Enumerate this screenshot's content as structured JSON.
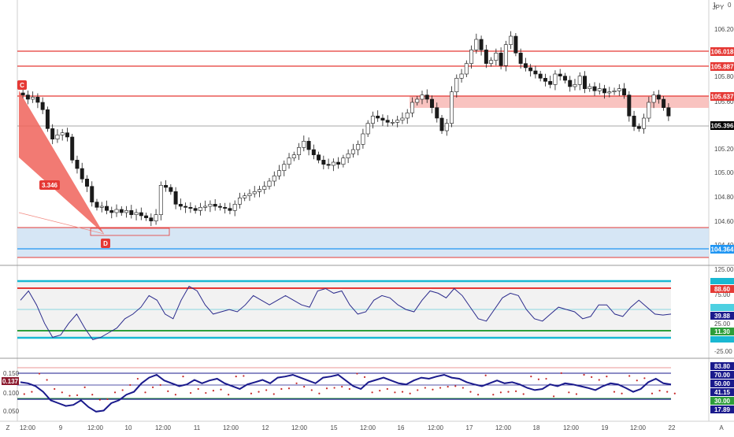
{
  "colors": {
    "candle": "#1a1a1a",
    "resistance": "#e53935",
    "zone_fill": "#f7b4b0",
    "support_fill": "#cfe2f3",
    "support_line": "#2196f3",
    "cci_line": "#2b2b8c",
    "bright_cyan": "#19b8d2",
    "green": "#2e9e3a",
    "dark_navy": "#1a1a8c",
    "dotted_red": "#c62828"
  },
  "symbol": "JPY",
  "top_right_label": "1",
  "top_right_value": "0",
  "main_chart": {
    "type": "line",
    "price_ticks": [
      "106.200",
      "105.800",
      "105.600",
      "105.200",
      "105.000",
      "104.800",
      "104.600",
      "104.400"
    ],
    "price_tags": [
      {
        "name": "resistance-1",
        "label": "106.018",
        "bg": "#e53935",
        "fg": "#ffffff"
      },
      {
        "name": "resistance-2",
        "label": "105.887",
        "bg": "#e53935",
        "fg": "#ffffff"
      },
      {
        "name": "resistance-3",
        "label": "105.637",
        "bg": "#e53935",
        "fg": "#ffffff"
      },
      {
        "name": "current-price",
        "label": "105.396",
        "bg": "#000000",
        "fg": "#ffffff"
      },
      {
        "name": "support-1",
        "label": "104.364",
        "bg": "#2196f3",
        "fg": "#ffffff"
      }
    ],
    "pattern_labels": {
      "point_c": "C",
      "point_d": "D",
      "ratio": "3.346"
    },
    "ylim": [
      104.2,
      106.3
    ],
    "close_series": [
      105.62,
      105.58,
      105.6,
      105.55,
      105.48,
      105.3,
      105.2,
      105.24,
      105.26,
      105.22,
      105.0,
      104.92,
      104.82,
      104.75,
      104.6,
      104.55,
      104.56,
      104.52,
      104.5,
      104.53,
      104.5,
      104.52,
      104.48,
      104.5,
      104.47,
      104.45,
      104.42,
      104.48,
      104.76,
      104.74,
      104.7,
      104.58,
      104.56,
      104.55,
      104.54,
      104.52,
      104.55,
      104.56,
      104.58,
      104.56,
      104.55,
      104.54,
      104.52,
      104.58,
      104.64,
      104.66,
      104.68,
      104.7,
      104.72,
      104.75,
      104.8,
      104.85,
      104.9,
      104.96,
      105.02,
      105.05,
      105.12,
      105.18,
      105.1,
      105.05,
      105.0,
      104.96,
      104.95,
      104.98,
      104.96,
      105.02,
      105.06,
      105.1,
      105.15,
      105.25,
      105.35,
      105.42,
      105.4,
      105.38,
      105.36,
      105.36,
      105.38,
      105.4,
      105.45,
      105.55,
      105.58,
      105.62,
      105.58,
      105.5,
      105.4,
      105.28,
      105.35,
      105.65,
      105.78,
      105.82,
      105.92,
      106.05,
      106.15,
      106.05,
      105.92,
      105.95,
      106.02,
      105.9,
      106.1,
      106.18,
      106.02,
      105.92,
      105.88,
      105.85,
      105.82,
      105.78,
      105.75,
      105.72,
      105.82,
      105.8,
      105.76,
      105.7,
      105.72,
      105.8,
      105.68,
      105.7,
      105.66,
      105.68,
      105.64,
      105.65,
      105.66,
      105.68,
      105.62,
      105.42,
      105.32,
      105.3,
      105.4,
      105.55,
      105.62,
      105.58,
      105.5,
      105.42
    ]
  },
  "cci_panel": {
    "type": "line",
    "ylim": [
      -50,
      140
    ],
    "ticks": [
      "125.00",
      "75.00",
      "25.00",
      "-25.00"
    ],
    "levels": [
      {
        "name": "cci-level-top",
        "label": "88.60",
        "bg": "#e53935",
        "fg": "#ffffff"
      },
      {
        "name": "cci-level-mid",
        "label": "39.88",
        "bg": "#1a1a8c",
        "fg": "#ffffff"
      },
      {
        "name": "cci-level-low",
        "label": "11.30",
        "bg": "#2e9e3a",
        "fg": "#ffffff"
      }
    ],
    "values": [
      70,
      90,
      60,
      20,
      -10,
      -5,
      20,
      40,
      10,
      -15,
      -10,
      0,
      10,
      30,
      40,
      55,
      80,
      70,
      40,
      30,
      70,
      100,
      90,
      60,
      40,
      45,
      50,
      45,
      60,
      80,
      70,
      60,
      70,
      80,
      70,
      60,
      55,
      90,
      95,
      85,
      90,
      60,
      40,
      45,
      70,
      80,
      75,
      60,
      50,
      45,
      70,
      90,
      85,
      75,
      95,
      80,
      55,
      30,
      25,
      50,
      75,
      85,
      80,
      50,
      30,
      25,
      40,
      55,
      50,
      45,
      30,
      35,
      60,
      60,
      40,
      35,
      55,
      70,
      55,
      40,
      38,
      40
    ]
  },
  "bottom_panel": {
    "type": "line",
    "ticks": [
      "0.150",
      "0.100",
      "0.050"
    ],
    "current_value": "0.137",
    "levels": [
      {
        "name": "bottom-level-1",
        "label": "83.80",
        "bg": "#1a1a8c",
        "fg": "#ffffff"
      },
      {
        "name": "bottom-level-2",
        "label": "70.00",
        "bg": "#1a1a8c",
        "fg": "#ffffff"
      },
      {
        "name": "bottom-level-3",
        "label": "50.00",
        "bg": "#1a1a8c",
        "fg": "#ffffff"
      },
      {
        "name": "bottom-level-4",
        "label": "41.15",
        "bg": "#1a1a8c",
        "fg": "#ffffff"
      },
      {
        "name": "bottom-level-5",
        "label": "30.00",
        "bg": "#2e9e3a",
        "fg": "#ffffff"
      },
      {
        "name": "bottom-level-6",
        "label": "17.89",
        "bg": "#1a1a8c",
        "fg": "#ffffff"
      }
    ],
    "line_values": [
      62,
      60,
      55,
      45,
      30,
      25,
      20,
      22,
      30,
      18,
      10,
      12,
      25,
      30,
      40,
      45,
      60,
      70,
      75,
      65,
      60,
      55,
      58,
      66,
      60,
      65,
      68,
      60,
      55,
      50,
      58,
      62,
      66,
      60,
      70,
      72,
      75,
      70,
      65,
      60,
      70,
      72,
      75,
      65,
      55,
      50,
      62,
      66,
      70,
      65,
      60,
      58,
      65,
      70,
      68,
      72,
      75,
      70,
      68,
      62,
      58,
      55,
      60,
      65,
      60,
      62,
      58,
      52,
      48,
      50,
      58,
      55,
      60,
      58,
      55,
      52,
      48,
      55,
      60,
      58,
      52,
      45,
      50,
      62,
      68,
      60,
      58
    ]
  },
  "x_axis": {
    "labels": [
      "12:00",
      "9",
      "12:00",
      "10",
      "12:00",
      "11",
      "12:00",
      "12",
      "12:00",
      "15",
      "12:00",
      "16",
      "12:00",
      "17",
      "12:00",
      "18",
      "12:00",
      "19",
      "12:00",
      "22"
    ],
    "left_letter": "Z",
    "right_letter": "A"
  }
}
